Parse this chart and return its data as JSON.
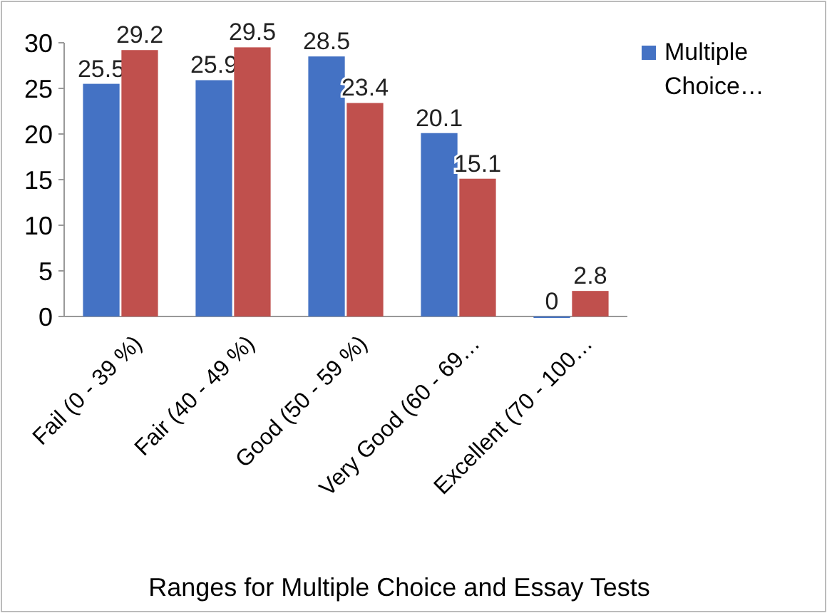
{
  "chart_data": {
    "type": "bar",
    "xlabel": "Ranges for Multiple Choice and Essay Tests",
    "categories": [
      "Fail (0 - 39 %)",
      "Fair (40 - 49 %)",
      "Good (50 - 59 %)",
      "Very Good (60 - 69…",
      "Excellent (70 - 100…"
    ],
    "series": [
      {
        "name": "Multiple Choice…",
        "color": "#4472c4",
        "values": [
          25.5,
          25.9,
          28.5,
          20.1,
          0
        ]
      },
      {
        "color": "#c0504d",
        "values": [
          29.2,
          29.5,
          23.4,
          15.1,
          2.8
        ]
      }
    ],
    "ylim": [
      0,
      30
    ],
    "yticks": [
      0,
      5,
      10,
      15,
      20,
      25,
      30
    ],
    "data_labels": true,
    "legend": "top right",
    "grid": false
  }
}
